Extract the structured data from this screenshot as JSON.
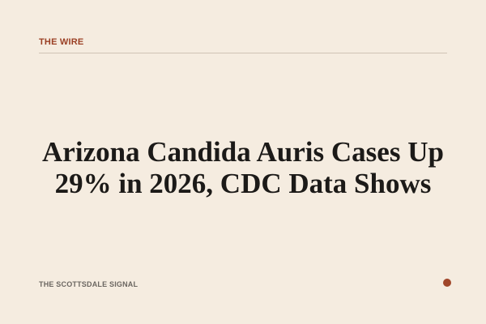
{
  "header": {
    "label": "THE WIRE"
  },
  "headline": "Arizona Candida Auris Cases Up 29% in 2026, CDC Data Shows",
  "footer": {
    "publication": "THE SCOTTSDALE SIGNAL"
  }
}
